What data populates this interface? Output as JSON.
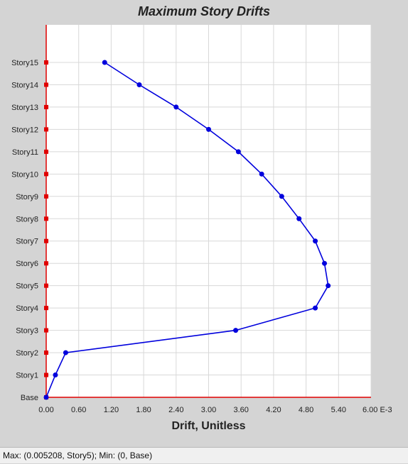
{
  "chart_data": {
    "type": "line",
    "title": "Maximum Story Drifts",
    "xlabel": "Drift, Unitless",
    "x_tick_labels": [
      "0.00",
      "0.60",
      "1.20",
      "1.80",
      "2.40",
      "3.00",
      "3.60",
      "4.20",
      "4.80",
      "5.40",
      "6.00 E-3"
    ],
    "x_ticks": [
      0,
      0.0006,
      0.0012,
      0.0018,
      0.0024,
      0.003,
      0.0036,
      0.0042,
      0.0048,
      0.0054,
      0.006
    ],
    "xlim": [
      0,
      0.006
    ],
    "categories": [
      "Base",
      "Story1",
      "Story2",
      "Story3",
      "Story4",
      "Story5",
      "Story6",
      "Story7",
      "Story8",
      "Story9",
      "Story10",
      "Story11",
      "Story12",
      "Story13",
      "Story14",
      "Story15"
    ],
    "series": [
      {
        "color": "#0000dd",
        "x": [
          0,
          0.00017,
          0.00036,
          0.0035,
          0.00497,
          0.005208,
          0.00514,
          0.00497,
          0.00467,
          0.00435,
          0.00398,
          0.00355,
          0.003,
          0.0024,
          0.00172,
          0.00108
        ],
        "y": [
          "Base",
          "Story1",
          "Story2",
          "Story3",
          "Story4",
          "Story5",
          "Story6",
          "Story7",
          "Story8",
          "Story9",
          "Story10",
          "Story11",
          "Story12",
          "Story13",
          "Story14",
          "Story15"
        ]
      }
    ],
    "grid": true,
    "axis_color": "#e00000"
  },
  "status": "Max: (0.005208, Story5);   Min: (0, Base)"
}
